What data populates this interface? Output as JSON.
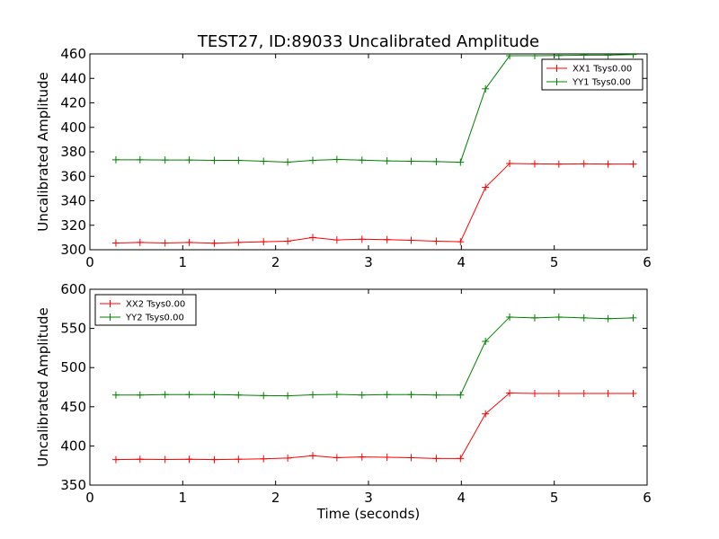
{
  "chart_data": [
    {
      "type": "line",
      "title": "TEST27, ID:89033 Uncalibrated Amplitude",
      "xlabel": "",
      "ylabel": "Uncalibrated Amplitude",
      "xlim": [
        0,
        6
      ],
      "ylim": [
        300,
        460
      ],
      "xticks": [
        "0",
        "1",
        "2",
        "3",
        "4",
        "5",
        "6"
      ],
      "yticks": [
        "300",
        "320",
        "340",
        "360",
        "380",
        "400",
        "420",
        "440",
        "460"
      ],
      "legend_position": "top-right",
      "x": [
        0.28,
        0.54,
        0.81,
        1.07,
        1.34,
        1.6,
        1.87,
        2.13,
        2.4,
        2.66,
        2.93,
        3.2,
        3.46,
        3.73,
        3.99,
        4.26,
        4.52,
        4.79,
        5.05,
        5.32,
        5.58,
        5.85
      ],
      "series": [
        {
          "name": "XX1 Tsys0.00",
          "color": "#ff0000",
          "values": [
            305.5,
            306,
            305.5,
            306,
            305.3,
            306,
            306.5,
            307,
            310,
            308,
            308.6,
            308.3,
            307.7,
            307,
            306.5,
            351,
            370.5,
            370.2,
            370,
            370.2,
            370,
            370
          ]
        },
        {
          "name": "YY1 Tsys0.00",
          "color": "#008000",
          "values": [
            373.5,
            373.5,
            373.3,
            373.3,
            373,
            373,
            372.3,
            371.6,
            373,
            373.8,
            373.2,
            372.6,
            372.3,
            372,
            371.5,
            431.5,
            458.5,
            458.5,
            458.7,
            459,
            459,
            459.5
          ]
        }
      ]
    },
    {
      "type": "line",
      "title": "",
      "xlabel": "Time (seconds)",
      "ylabel": "Uncalibrated Amplitude",
      "xlim": [
        0,
        6
      ],
      "ylim": [
        350,
        600
      ],
      "xticks": [
        "0",
        "1",
        "2",
        "3",
        "4",
        "5",
        "6"
      ],
      "yticks": [
        "350",
        "400",
        "450",
        "500",
        "550",
        "600"
      ],
      "legend_position": "top-left",
      "x": [
        0.28,
        0.54,
        0.81,
        1.07,
        1.34,
        1.6,
        1.87,
        2.13,
        2.4,
        2.66,
        2.93,
        3.2,
        3.46,
        3.73,
        3.99,
        4.26,
        4.52,
        4.79,
        5.05,
        5.32,
        5.58,
        5.85
      ],
      "series": [
        {
          "name": "XX2 Tsys0.00",
          "color": "#ff0000",
          "values": [
            382.5,
            383,
            382.7,
            383,
            382.5,
            383,
            383.5,
            384.5,
            387.5,
            385,
            386,
            385.5,
            385,
            384,
            384,
            441,
            467.5,
            467,
            467,
            467,
            467,
            467
          ]
        },
        {
          "name": "YY2 Tsys0.00",
          "color": "#008000",
          "values": [
            465,
            465,
            465.5,
            465.5,
            465.5,
            465,
            464.3,
            464,
            465.3,
            465.8,
            465,
            465.5,
            465.5,
            465,
            465,
            533.5,
            564.5,
            563.5,
            564.5,
            563.5,
            562.5,
            563.5
          ]
        }
      ]
    }
  ]
}
